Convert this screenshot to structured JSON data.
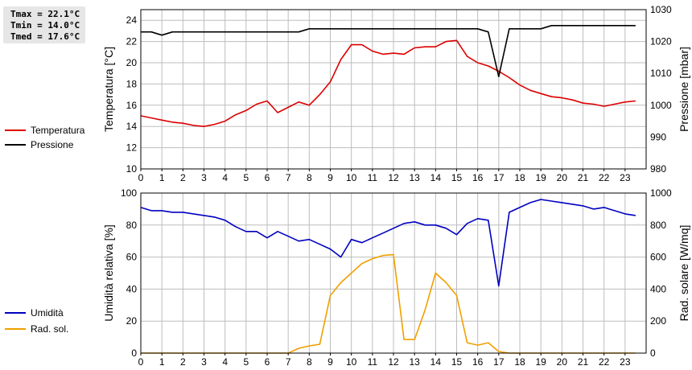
{
  "stats": {
    "tmax": "Tmax = 22.1°C",
    "tmin": "Tmin = 14.0°C",
    "tmed": "Tmed = 17.6°C"
  },
  "legend_top": [
    {
      "label": "Temperatura",
      "color": "#dd0000"
    },
    {
      "label": "Pressione",
      "color": "#000000"
    }
  ],
  "legend_bottom": [
    {
      "label": "Umidità",
      "color": "#0000c0"
    },
    {
      "label": "Rad. sol.",
      "color": "#f0a000"
    }
  ],
  "chart_data": [
    {
      "type": "line",
      "x_range": [
        0,
        24
      ],
      "x_ticks": [
        0,
        1,
        2,
        3,
        4,
        5,
        6,
        7,
        8,
        9,
        10,
        11,
        12,
        13,
        14,
        15,
        16,
        17,
        18,
        19,
        20,
        21,
        22,
        23
      ],
      "grid": true,
      "left_axis": {
        "label": "Temperatura [°C]",
        "range": [
          10,
          25
        ],
        "ticks": [
          10,
          12,
          14,
          16,
          18,
          20,
          22,
          24
        ]
      },
      "right_axis": {
        "label": "Pressione [mbar]",
        "range": [
          980,
          1030
        ],
        "ticks": [
          980,
          990,
          1000,
          1010,
          1020,
          1030
        ]
      },
      "series": [
        {
          "name": "Temperatura",
          "axis": "left",
          "color": "#dd0000",
          "x": [
            0,
            0.5,
            1,
            1.5,
            2,
            2.5,
            3,
            3.5,
            4,
            4.5,
            5,
            5.5,
            6,
            6.5,
            7,
            7.5,
            8,
            8.5,
            9,
            9.5,
            10,
            10.5,
            11,
            11.5,
            12,
            12.5,
            13,
            13.5,
            14,
            14.5,
            15,
            15.5,
            16,
            16.5,
            17,
            17.5,
            18,
            18.5,
            19,
            19.5,
            20,
            20.5,
            21,
            21.5,
            22,
            22.5,
            23,
            23.5
          ],
          "y": [
            15.0,
            14.8,
            14.6,
            14.4,
            14.3,
            14.1,
            14.0,
            14.2,
            14.5,
            15.1,
            15.5,
            16.1,
            16.4,
            15.3,
            15.8,
            16.3,
            16.0,
            17.0,
            18.2,
            20.3,
            21.7,
            21.7,
            21.1,
            20.8,
            20.9,
            20.8,
            21.4,
            21.5,
            21.5,
            22.0,
            22.1,
            20.6,
            20.0,
            19.7,
            19.2,
            18.6,
            17.9,
            17.4,
            17.1,
            16.8,
            16.7,
            16.5,
            16.2,
            16.1,
            15.9,
            16.1,
            16.3,
            16.4
          ]
        },
        {
          "name": "Pressione",
          "axis": "right",
          "color": "#000000",
          "x": [
            0,
            0.5,
            1,
            1.5,
            2,
            2.5,
            3,
            3.5,
            4,
            4.5,
            5,
            5.5,
            6,
            6.5,
            7,
            7.5,
            8,
            8.5,
            9,
            9.5,
            10,
            10.5,
            11,
            11.5,
            12,
            12.5,
            13,
            13.5,
            14,
            14.5,
            15,
            15.5,
            16,
            16.5,
            17,
            17.5,
            18,
            18.5,
            19,
            19.5,
            20,
            20.5,
            21,
            21.5,
            22,
            22.5,
            23,
            23.5
          ],
          "y": [
            1023,
            1023,
            1022,
            1023,
            1023,
            1023,
            1023,
            1023,
            1023,
            1023,
            1023,
            1023,
            1023,
            1023,
            1023,
            1023,
            1024,
            1024,
            1024,
            1024,
            1024,
            1024,
            1024,
            1024,
            1024,
            1024,
            1024,
            1024,
            1024,
            1024,
            1024,
            1024,
            1024,
            1023,
            1009,
            1024,
            1024,
            1024,
            1024,
            1025,
            1025,
            1025,
            1025,
            1025,
            1025,
            1025,
            1025,
            1025
          ]
        }
      ]
    },
    {
      "type": "line",
      "x_range": [
        0,
        24
      ],
      "x_ticks": [
        0,
        1,
        2,
        3,
        4,
        5,
        6,
        7,
        8,
        9,
        10,
        11,
        12,
        13,
        14,
        15,
        16,
        17,
        18,
        19,
        20,
        21,
        22,
        23
      ],
      "grid": true,
      "left_axis": {
        "label": "Umidità relativa [%]",
        "range": [
          0,
          100
        ],
        "ticks": [
          0,
          20,
          40,
          60,
          80,
          100
        ]
      },
      "right_axis": {
        "label": "Rad. solare [W/mq]",
        "range": [
          0,
          1000
        ],
        "ticks": [
          0,
          200,
          400,
          600,
          800,
          1000
        ]
      },
      "series": [
        {
          "name": "Umidità",
          "axis": "left",
          "color": "#0000c0",
          "x": [
            0,
            0.5,
            1,
            1.5,
            2,
            2.5,
            3,
            3.5,
            4,
            4.5,
            5,
            5.5,
            6,
            6.5,
            7,
            7.5,
            8,
            8.5,
            9,
            9.5,
            10,
            10.5,
            11,
            11.5,
            12,
            12.5,
            13,
            13.5,
            14,
            14.5,
            15,
            15.5,
            16,
            16.5,
            17,
            17.5,
            18,
            18.5,
            19,
            19.5,
            20,
            20.5,
            21,
            21.5,
            22,
            22.5,
            23,
            23.5
          ],
          "y": [
            91,
            89,
            89,
            88,
            88,
            87,
            86,
            85,
            83,
            79,
            76,
            76,
            72,
            76,
            73,
            70,
            71,
            68,
            65,
            60,
            71,
            69,
            72,
            75,
            78,
            81,
            82,
            80,
            80,
            78,
            74,
            81,
            84,
            83,
            42,
            88,
            91,
            94,
            96,
            95,
            94,
            93,
            92,
            90,
            91,
            89,
            87,
            86
          ]
        },
        {
          "name": "Rad. sol.",
          "axis": "right",
          "color": "#f0a000",
          "x": [
            0,
            0.5,
            1,
            1.5,
            2,
            2.5,
            3,
            3.5,
            4,
            4.5,
            5,
            5.5,
            6,
            6.5,
            7,
            7.5,
            8,
            8.5,
            9,
            9.5,
            10,
            10.5,
            11,
            11.5,
            12,
            12.5,
            13,
            13.5,
            14,
            14.5,
            15,
            15.5,
            16,
            16.5,
            17,
            17.5,
            18,
            18.5,
            19,
            19.5,
            20,
            20.5,
            21,
            21.5,
            22,
            22.5,
            23,
            23.5
          ],
          "y": [
            0,
            0,
            0,
            0,
            0,
            0,
            0,
            0,
            0,
            0,
            0,
            0,
            0,
            0,
            0,
            30,
            45,
            55,
            360,
            440,
            500,
            560,
            590,
            610,
            615,
            85,
            85,
            270,
            500,
            440,
            360,
            65,
            50,
            65,
            10,
            0,
            0,
            0,
            0,
            0,
            0,
            0,
            0,
            0,
            0,
            0,
            0,
            0
          ]
        }
      ]
    }
  ]
}
